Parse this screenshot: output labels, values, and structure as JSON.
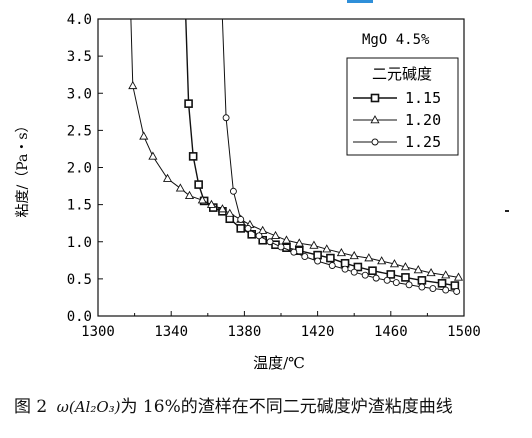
{
  "chart_data": {
    "type": "line",
    "xlabel": "温度/℃",
    "ylabel": "粘度/（Pa・s）",
    "annotation": "MgO 4.5%",
    "legend_title": "二元碱度",
    "legend_position": "top-right",
    "xlim": [
      1300,
      1500
    ],
    "ylim": [
      0,
      4.0
    ],
    "xticks": [
      "1300",
      "1340",
      "1380",
      "1420",
      "1460",
      "1500"
    ],
    "yticks": [
      "0.0",
      "0.5",
      "1.0",
      "1.5",
      "2.0",
      "2.5",
      "3.0",
      "3.5",
      "4.0"
    ],
    "grid": false,
    "series": [
      {
        "name": "1.15",
        "marker": "square",
        "x": [
          1348,
          1349.5,
          1352,
          1355,
          1358,
          1363,
          1368,
          1372,
          1378,
          1384,
          1390,
          1397,
          1403,
          1410,
          1420,
          1427,
          1435,
          1442,
          1450,
          1460,
          1468,
          1477,
          1488,
          1495
        ],
        "y": [
          4.0,
          2.86,
          2.15,
          1.77,
          1.55,
          1.46,
          1.41,
          1.31,
          1.18,
          1.1,
          1.02,
          0.96,
          0.92,
          0.88,
          0.82,
          0.78,
          0.71,
          0.66,
          0.61,
          0.56,
          0.52,
          0.48,
          0.44,
          0.41
        ]
      },
      {
        "name": "1.20",
        "marker": "triangle",
        "x": [
          1318,
          1319,
          1325,
          1330,
          1338,
          1345,
          1350,
          1357,
          1362,
          1368,
          1372,
          1378,
          1383,
          1390,
          1397,
          1403,
          1410,
          1418,
          1425,
          1433,
          1440,
          1448,
          1455,
          1462,
          1468,
          1475,
          1482,
          1490,
          1497
        ],
        "y": [
          4.0,
          3.1,
          2.42,
          2.15,
          1.85,
          1.72,
          1.62,
          1.56,
          1.5,
          1.44,
          1.38,
          1.3,
          1.23,
          1.15,
          1.08,
          1.02,
          0.98,
          0.95,
          0.9,
          0.85,
          0.81,
          0.78,
          0.74,
          0.7,
          0.66,
          0.62,
          0.58,
          0.55,
          0.52
        ]
      },
      {
        "name": "1.25",
        "marker": "circle",
        "x": [
          1368,
          1370,
          1374,
          1378,
          1382,
          1388,
          1394,
          1400,
          1407,
          1413,
          1420,
          1428,
          1435,
          1440,
          1446,
          1452,
          1458,
          1463,
          1470,
          1477,
          1483,
          1490,
          1496
        ],
        "y": [
          4.0,
          2.67,
          1.68,
          1.3,
          1.18,
          1.08,
          1.0,
          0.93,
          0.86,
          0.8,
          0.74,
          0.68,
          0.63,
          0.59,
          0.55,
          0.51,
          0.48,
          0.45,
          0.42,
          0.39,
          0.37,
          0.35,
          0.33
        ]
      }
    ]
  },
  "caption": {
    "prefix": "图 2",
    "math": "ω(Al₂O₃)",
    "middle": "为 16%",
    "suffix": "的渣样在不同二元碱度炉渣粘度曲线"
  }
}
